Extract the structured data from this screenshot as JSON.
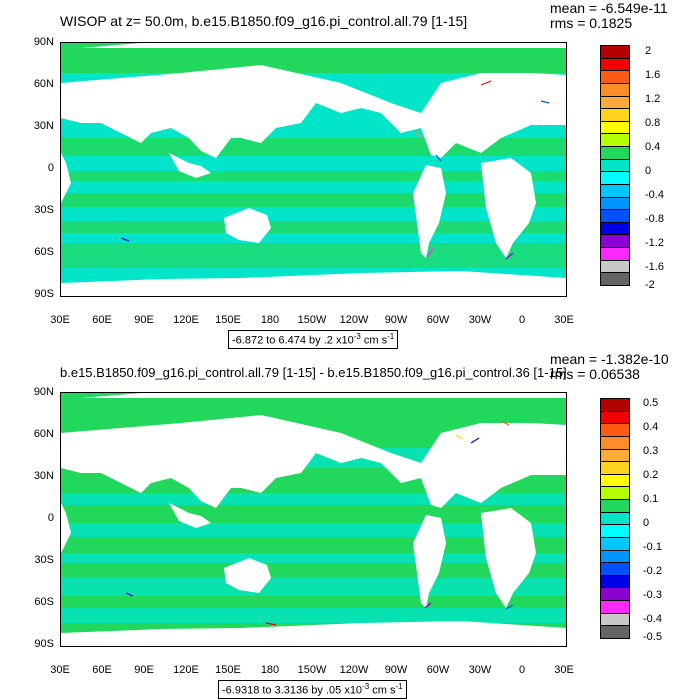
{
  "panels": [
    {
      "title": "WISOP at z=  50.0m, b.e15.B1850.f09_g16.pi_control.all.79 [1-15]",
      "mean": "mean = -6.549e-11",
      "rms": "rms = 0.1825",
      "range_text": "-6.872 to 6.474 by .2 x10",
      "range_exp": "-3",
      "range_unit": " cm s",
      "range_unit_exp": "-1",
      "colorbar_labels": [
        "2",
        "1.6",
        "1.2",
        "0.8",
        "0.4",
        "0",
        "-0.4",
        "-0.8",
        "-1.2",
        "-1.6",
        "-2"
      ],
      "ocean_color": "#00e5c8",
      "band_color": "#22d85c"
    },
    {
      "title": "b.e15.B1850.f09_g16.pi_control.all.79 [1-15] - b.e15.B1850.f09_g16.pi_control.36 [1-15]",
      "mean": "mean = -1.382e-10",
      "rms": "rms = 0.06538",
      "range_text": "-6.9318 to 3.3136 by .05 x10",
      "range_exp": "-3",
      "range_unit": " cm s",
      "range_unit_exp": "-1",
      "colorbar_labels": [
        "0.5",
        "0.4",
        "0.3",
        "0.2",
        "0.1",
        "0",
        "-0.1",
        "-0.2",
        "-0.3",
        "-0.4",
        "-0.5"
      ],
      "ocean_color": "#00e5c8",
      "band_color": "#22d85c"
    }
  ],
  "lat_labels": [
    "90N",
    "60N",
    "30N",
    "0",
    "30S",
    "60S",
    "90S"
  ],
  "lon_labels": [
    "30E",
    "60E",
    "90E",
    "120E",
    "150E",
    "180",
    "150W",
    "120W",
    "90W",
    "60W",
    "30W",
    "0",
    "30E"
  ],
  "colorbar_colors": [
    "#b40000",
    "#f00000",
    "#ff5a14",
    "#ff8c28",
    "#ffaa3c",
    "#ffd21e",
    "#ffff00",
    "#b4ff00",
    "#22d85c",
    "#00e5c8",
    "#00ffff",
    "#00c8ff",
    "#0096ff",
    "#0050ff",
    "#0000e6",
    "#8c00d2",
    "#ff28ff",
    "#c8c8c8",
    "#646464"
  ]
}
